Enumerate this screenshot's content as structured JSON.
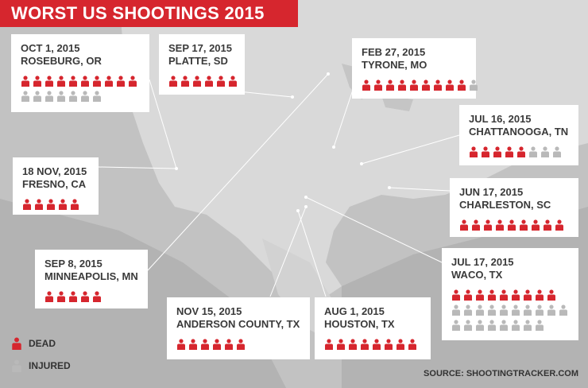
{
  "title": "WORST US SHOOTINGS 2015",
  "colors": {
    "dead": "#d6262e",
    "injured": "#b9b9b9"
  },
  "legend": {
    "dead_label": "DEAD",
    "injured_label": "INJURED"
  },
  "source": "SOURCE: SHOOTINGTRACKER.COM",
  "incidents": [
    {
      "id": "roseburg",
      "date": "OCT 1, 2015",
      "place": "ROSEBURG, OR",
      "dead": 10,
      "injured": 7
    },
    {
      "id": "platte",
      "date": "SEP 17, 2015",
      "place": "PLATTE, SD",
      "dead": 6,
      "injured": 0
    },
    {
      "id": "tyrone",
      "date": "FEB 27, 2015",
      "place": "TYRONE, MO",
      "dead": 9,
      "injured": 1
    },
    {
      "id": "chattanooga",
      "date": "JUL 16, 2015",
      "place": "CHATTANOOGA, TN",
      "dead": 5,
      "injured": 3
    },
    {
      "id": "fresno",
      "date": "18 NOV, 2015",
      "place": "FRESNO, CA",
      "dead": 5,
      "injured": 0
    },
    {
      "id": "charleston",
      "date": "JUN 17, 2015",
      "place": "CHARLESTON, SC",
      "dead": 9,
      "injured": 0
    },
    {
      "id": "minneapolis",
      "date": "SEP 8, 2015",
      "place": "MINNEAPOLIS, MN",
      "dead": 5,
      "injured": 0
    },
    {
      "id": "waco",
      "date": "JUL 17, 2015",
      "place": "WACO, TX",
      "dead": 9,
      "injured": 18
    },
    {
      "id": "anderson",
      "date": "NOV 15, 2015",
      "place": "ANDERSON COUNTY, TX",
      "dead": 6,
      "injured": 0
    },
    {
      "id": "houston",
      "date": "AUG 1, 2015",
      "place": "HOUSTON, TX",
      "dead": 8,
      "injured": 0
    }
  ]
}
